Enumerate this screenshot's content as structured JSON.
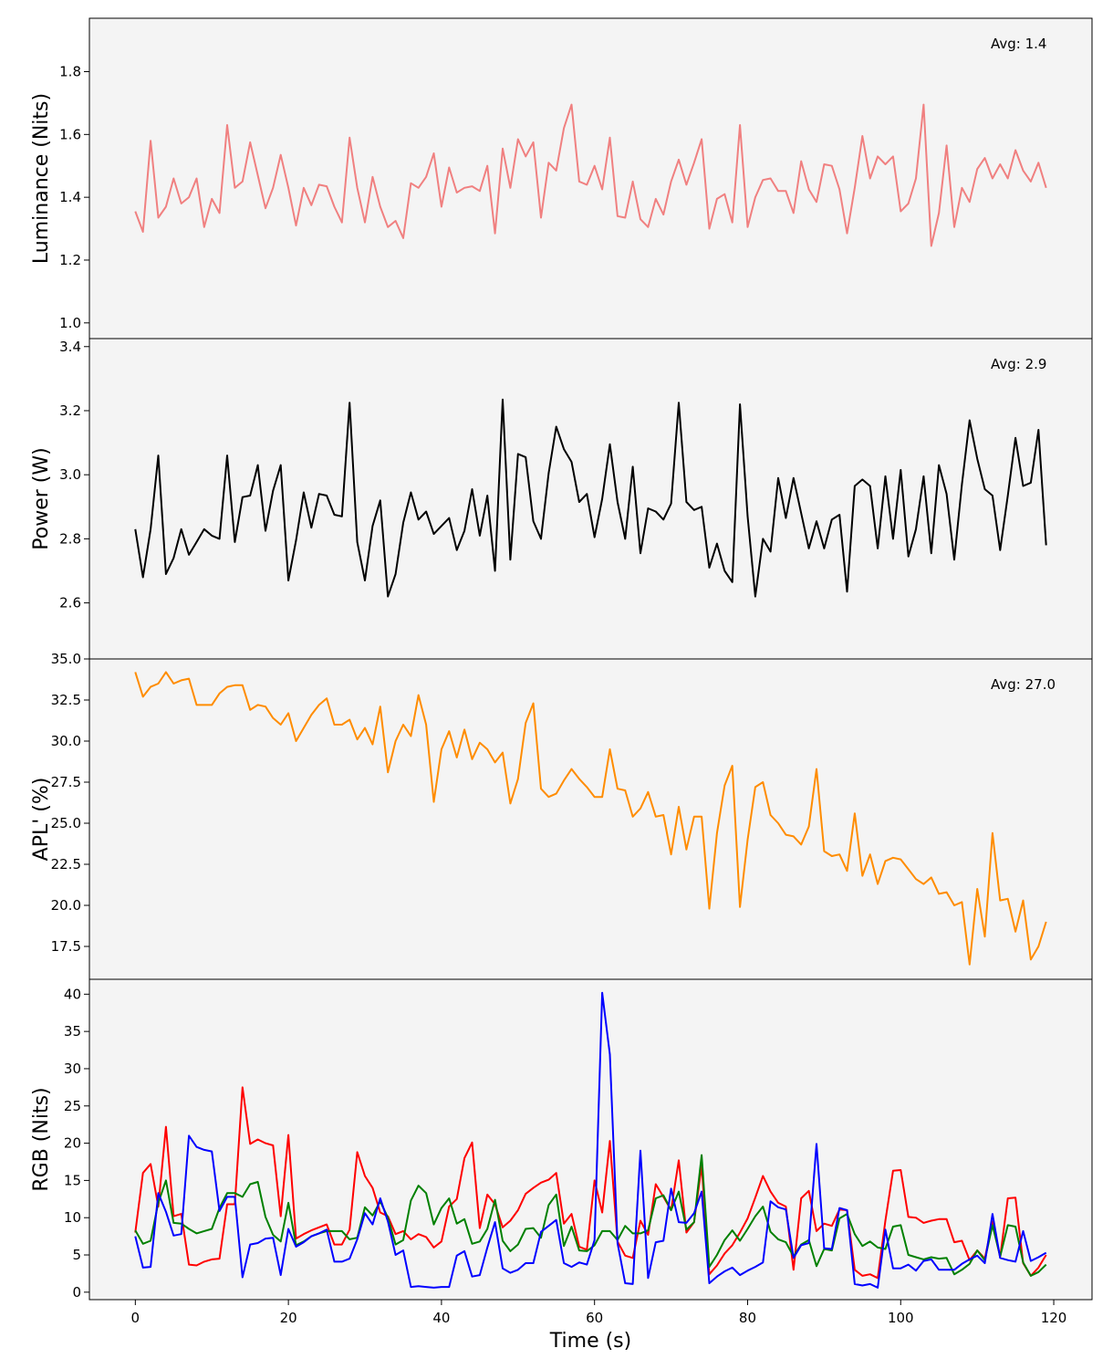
{
  "chart_data": [
    {
      "type": "line",
      "ylabel": "Luminance (Nits)",
      "ylim": [
        0.95,
        1.97
      ],
      "yticks": [
        1.0,
        1.2,
        1.4,
        1.6,
        1.8
      ],
      "ytick_labels": [
        "1.0",
        "1.2",
        "1.4",
        "1.6",
        "1.8"
      ],
      "annotation": "Avg: 1.4",
      "series": [
        {
          "color": "#f08080",
          "x_start": 0,
          "x_step": 1,
          "values": [
            1.355,
            1.29,
            1.58,
            1.335,
            1.37,
            1.46,
            1.38,
            1.4,
            1.46,
            1.305,
            1.395,
            1.35,
            1.63,
            1.43,
            1.45,
            1.575,
            1.47,
            1.365,
            1.43,
            1.535,
            1.43,
            1.31,
            1.43,
            1.375,
            1.44,
            1.435,
            1.37,
            1.32,
            1.59,
            1.43,
            1.32,
            1.465,
            1.37,
            1.305,
            1.325,
            1.27,
            1.445,
            1.43,
            1.465,
            1.54,
            1.37,
            1.495,
            1.415,
            1.43,
            1.435,
            1.42,
            1.5,
            1.285,
            1.555,
            1.43,
            1.585,
            1.53,
            1.575,
            1.335,
            1.51,
            1.485,
            1.62,
            1.695,
            1.45,
            1.44,
            1.5,
            1.425,
            1.59,
            1.34,
            1.335,
            1.45,
            1.33,
            1.305,
            1.395,
            1.345,
            1.45,
            1.52,
            1.44,
            1.51,
            1.585,
            1.3,
            1.395,
            1.41,
            1.32,
            1.63,
            1.305,
            1.4,
            1.455,
            1.46,
            1.42,
            1.42,
            1.35,
            1.515,
            1.425,
            1.385,
            1.505,
            1.5,
            1.425,
            1.285,
            1.43,
            1.595,
            1.46,
            1.53,
            1.505,
            1.53,
            1.355,
            1.38,
            1.46,
            1.695,
            1.245,
            1.35,
            1.565,
            1.305,
            1.43,
            1.385,
            1.49,
            1.525,
            1.46,
            1.505,
            1.46,
            1.55,
            1.485,
            1.45,
            1.51,
            1.43
          ]
        }
      ]
    },
    {
      "type": "line",
      "ylabel": "Power (W)",
      "ylim": [
        2.425,
        3.425
      ],
      "yticks": [
        2.6,
        2.8,
        3.0,
        3.2,
        3.4
      ],
      "ytick_labels": [
        "2.6",
        "2.8",
        "3.0",
        "3.2",
        "3.4"
      ],
      "annotation": "Avg: 2.9",
      "series": [
        {
          "color": "#000000",
          "x_start": 0,
          "x_step": 1,
          "values": [
            2.83,
            2.68,
            2.83,
            3.06,
            2.69,
            2.74,
            2.83,
            2.75,
            2.79,
            2.83,
            2.81,
            2.8,
            3.06,
            2.79,
            2.93,
            2.935,
            3.03,
            2.825,
            2.95,
            3.03,
            2.67,
            2.795,
            2.945,
            2.835,
            2.94,
            2.935,
            2.875,
            2.87,
            3.225,
            2.79,
            2.67,
            2.84,
            2.92,
            2.62,
            2.69,
            2.85,
            2.945,
            2.86,
            2.885,
            2.815,
            2.84,
            2.865,
            2.765,
            2.825,
            2.955,
            2.81,
            2.935,
            2.7,
            3.235,
            2.735,
            3.065,
            3.055,
            2.855,
            2.8,
            3.005,
            3.15,
            3.08,
            3.04,
            2.915,
            2.94,
            2.805,
            2.925,
            3.095,
            2.915,
            2.8,
            3.025,
            2.755,
            2.895,
            2.885,
            2.86,
            2.91,
            3.225,
            2.915,
            2.89,
            2.9,
            2.71,
            2.785,
            2.7,
            2.665,
            3.22,
            2.87,
            2.62,
            2.8,
            2.76,
            2.99,
            2.865,
            2.99,
            2.88,
            2.77,
            2.855,
            2.77,
            2.86,
            2.875,
            2.635,
            2.965,
            2.985,
            2.965,
            2.77,
            2.995,
            2.8,
            3.015,
            2.745,
            2.83,
            2.995,
            2.755,
            3.03,
            2.94,
            2.735,
            2.97,
            3.17,
            3.05,
            2.955,
            2.935,
            2.765,
            2.935,
            3.115,
            2.965,
            2.975,
            3.14,
            2.78
          ]
        }
      ]
    },
    {
      "type": "line",
      "ylabel": "APL' (%)",
      "ylim": [
        15.5,
        35.0
      ],
      "yticks": [
        17.5,
        20.0,
        22.5,
        25.0,
        27.5,
        30.0,
        32.5,
        35.0
      ],
      "ytick_labels": [
        "17.5",
        "20.0",
        "22.5",
        "25.0",
        "27.5",
        "30.0",
        "32.5",
        "35.0"
      ],
      "annotation": "Avg: 27.0",
      "series": [
        {
          "color": "#ff8c00",
          "x_start": 0,
          "x_step": 1,
          "values": [
            34.2,
            32.7,
            33.3,
            33.5,
            34.2,
            33.5,
            33.7,
            33.8,
            32.2,
            32.2,
            32.2,
            32.9,
            33.3,
            33.4,
            33.4,
            31.9,
            32.2,
            32.1,
            31.4,
            31.0,
            31.7,
            30.0,
            30.8,
            31.6,
            32.2,
            32.6,
            31.0,
            31.0,
            31.3,
            30.1,
            30.8,
            29.8,
            32.1,
            28.1,
            30.0,
            31.0,
            30.3,
            32.8,
            31.0,
            26.3,
            29.5,
            30.6,
            29.0,
            30.7,
            28.9,
            29.9,
            29.5,
            28.7,
            29.3,
            26.2,
            27.7,
            31.1,
            32.3,
            27.1,
            26.6,
            26.8,
            27.6,
            28.3,
            27.7,
            27.2,
            26.6,
            26.6,
            29.5,
            27.1,
            27.0,
            25.4,
            25.9,
            26.9,
            25.4,
            25.5,
            23.1,
            26.0,
            23.4,
            25.4,
            25.4,
            19.8,
            24.4,
            27.3,
            28.5,
            19.9,
            24.0,
            27.2,
            27.5,
            25.5,
            25.0,
            24.3,
            24.2,
            23.7,
            24.8,
            28.3,
            23.3,
            23.0,
            23.1,
            22.1,
            25.6,
            21.8,
            23.1,
            21.3,
            22.7,
            22.9,
            22.8,
            22.2,
            21.6,
            21.3,
            21.7,
            20.7,
            20.8,
            20.0,
            20.2,
            16.4,
            21.0,
            18.1,
            24.4,
            20.3,
            20.4,
            18.4,
            20.3,
            16.7,
            17.5,
            19.0
          ]
        }
      ]
    },
    {
      "type": "line",
      "ylabel": "RGB (Nits)",
      "xlabel": "Time (s)",
      "xlim": [
        -6.0,
        125.0
      ],
      "ylim": [
        -1.0,
        42.0
      ],
      "xticks": [
        0,
        20,
        40,
        60,
        80,
        100,
        120
      ],
      "xtick_labels": [
        "0",
        "20",
        "40",
        "60",
        "80",
        "100",
        "120"
      ],
      "yticks": [
        0,
        5,
        10,
        15,
        20,
        25,
        30,
        35,
        40
      ],
      "ytick_labels": [
        "0",
        "5",
        "10",
        "15",
        "20",
        "25",
        "30",
        "35",
        "40"
      ],
      "series": [
        {
          "color": "#ff0000",
          "x_start": 0,
          "x_step": 1,
          "values": [
            8.0,
            16.0,
            17.2,
            11.5,
            22.2,
            10.2,
            10.5,
            3.7,
            3.6,
            4.1,
            4.4,
            4.5,
            11.8,
            11.8,
            27.5,
            19.9,
            20.5,
            20.0,
            19.7,
            10.2,
            21.1,
            7.2,
            7.8,
            8.3,
            8.7,
            9.1,
            6.4,
            6.4,
            8.4,
            18.8,
            15.6,
            14.0,
            10.7,
            10.2,
            7.8,
            8.2,
            7.1,
            7.8,
            7.4,
            6.0,
            6.8,
            11.5,
            12.5,
            18.0,
            20.1,
            8.6,
            13.1,
            11.8,
            8.7,
            9.6,
            11.0,
            13.2,
            14.0,
            14.7,
            15.1,
            16.0,
            9.2,
            10.5,
            6.1,
            5.7,
            15.0,
            10.7,
            20.3,
            6.8,
            4.9,
            4.6,
            9.6,
            7.7,
            14.5,
            12.8,
            11.0,
            17.7,
            8.0,
            9.4,
            17.0,
            2.4,
            3.6,
            5.2,
            6.3,
            8.0,
            9.9,
            12.7,
            15.6,
            13.5,
            12.0,
            11.5,
            3.0,
            12.6,
            13.6,
            8.2,
            9.2,
            8.9,
            11.1,
            11.0,
            3.0,
            2.2,
            2.4,
            1.9,
            9.6,
            16.3,
            16.4,
            10.1,
            10.0,
            9.3,
            9.6,
            9.8,
            9.8,
            6.7,
            6.9,
            4.3,
            5.6,
            4.5,
            9.5,
            4.7,
            12.6,
            12.7,
            3.9,
            2.2,
            3.3,
            5.0
          ]
        },
        {
          "color": "#008000",
          "x_start": 0,
          "x_step": 1,
          "values": [
            8.3,
            6.5,
            6.9,
            12.0,
            15.0,
            9.3,
            9.2,
            8.5,
            7.9,
            8.2,
            8.5,
            11.3,
            13.3,
            13.3,
            12.8,
            14.5,
            14.8,
            10.1,
            7.7,
            6.8,
            12.0,
            6.3,
            6.8,
            7.5,
            7.9,
            8.2,
            8.2,
            8.2,
            7.1,
            7.3,
            11.4,
            10.3,
            12.2,
            10.0,
            6.4,
            7.0,
            12.3,
            14.3,
            13.3,
            9.1,
            11.3,
            12.6,
            9.2,
            9.8,
            6.5,
            6.8,
            8.5,
            12.4,
            6.9,
            5.5,
            6.4,
            8.5,
            8.6,
            7.3,
            11.7,
            13.1,
            6.2,
            8.8,
            5.6,
            5.5,
            6.3,
            8.2,
            8.2,
            7.0,
            8.9,
            7.9,
            7.9,
            8.3,
            12.6,
            13.0,
            11.0,
            13.5,
            8.4,
            9.4,
            18.4,
            3.4,
            5.0,
            7.0,
            8.3,
            6.9,
            8.5,
            10.2,
            11.5,
            8.1,
            7.1,
            6.7,
            4.8,
            6.4,
            7.0,
            3.5,
            5.8,
            5.6,
            9.9,
            10.5,
            7.8,
            6.2,
            6.8,
            6.0,
            5.8,
            8.8,
            9.0,
            5.0,
            4.7,
            4.4,
            4.7,
            4.5,
            4.6,
            2.4,
            3.0,
            3.8,
            5.6,
            4.3,
            9.0,
            4.8,
            9.0,
            8.8,
            4.0,
            2.2,
            2.7,
            3.7
          ]
        },
        {
          "color": "#0000ff",
          "x_start": 0,
          "x_step": 1,
          "values": [
            7.5,
            3.3,
            3.4,
            13.3,
            10.8,
            7.6,
            7.8,
            21.0,
            19.5,
            19.1,
            18.9,
            10.9,
            12.8,
            12.8,
            2.0,
            6.4,
            6.6,
            7.2,
            7.3,
            2.3,
            8.5,
            6.1,
            6.7,
            7.5,
            7.9,
            8.4,
            4.1,
            4.1,
            4.5,
            7.1,
            10.6,
            9.1,
            12.6,
            9.5,
            5.0,
            5.6,
            0.7,
            0.8,
            0.7,
            0.6,
            0.7,
            0.7,
            4.9,
            5.5,
            2.1,
            2.3,
            6.0,
            9.4,
            3.2,
            2.6,
            3.0,
            3.9,
            3.9,
            8.1,
            8.9,
            9.7,
            3.9,
            3.4,
            4.0,
            3.7,
            7.0,
            40.2,
            31.9,
            6.6,
            1.2,
            1.1,
            19.0,
            1.9,
            6.7,
            6.9,
            13.9,
            9.4,
            9.3,
            10.6,
            13.5,
            1.2,
            2.1,
            2.8,
            3.3,
            2.3,
            2.9,
            3.4,
            4.0,
            12.2,
            11.4,
            11.1,
            4.6,
            6.3,
            6.6,
            19.9,
            5.9,
            5.8,
            11.3,
            11.0,
            1.1,
            0.9,
            1.1,
            0.6,
            8.4,
            3.2,
            3.2,
            3.7,
            2.9,
            4.2,
            4.4,
            3.0,
            3.0,
            3.0,
            3.8,
            4.4,
            4.9,
            3.9,
            10.5,
            4.6,
            4.3,
            4.1,
            8.2,
            4.2,
            4.7,
            5.3
          ]
        }
      ]
    }
  ]
}
